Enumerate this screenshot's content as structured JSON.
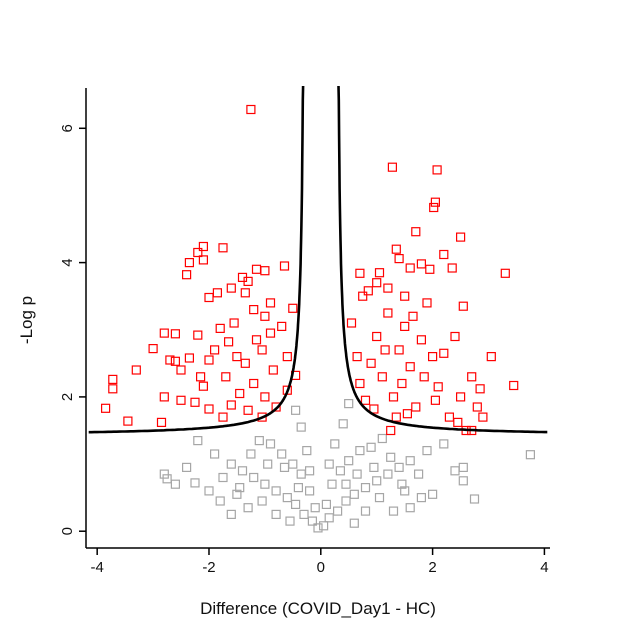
{
  "chart_data": {
    "type": "scatter",
    "title": "",
    "xlabel": "Difference (COVID_Day1 - HC)",
    "ylabel": "-Log p",
    "xlim": [
      -4.2,
      4.1
    ],
    "ylim": [
      -0.25,
      6.6
    ],
    "xticks": [
      -4,
      -2,
      0,
      2,
      4
    ],
    "yticks": [
      0,
      2,
      4,
      6
    ],
    "grid": false,
    "legend": "none",
    "marker": "open-square",
    "series": [
      {
        "color": "#ff0000",
        "points": [
          [
            -1.25,
            6.28
          ],
          [
            1.28,
            5.42
          ],
          [
            2.08,
            5.38
          ],
          [
            2.05,
            4.9
          ],
          [
            2.02,
            4.82
          ],
          [
            1.7,
            4.46
          ],
          [
            2.5,
            4.38
          ],
          [
            -2.1,
            4.24
          ],
          [
            -1.75,
            4.22
          ],
          [
            -2.2,
            4.15
          ],
          [
            1.35,
            4.2
          ],
          [
            1.4,
            4.06
          ],
          [
            2.2,
            4.12
          ],
          [
            -2.35,
            4.0
          ],
          [
            -2.1,
            4.04
          ],
          [
            1.8,
            3.98
          ],
          [
            1.6,
            3.92
          ],
          [
            1.95,
            3.9
          ],
          [
            2.35,
            3.92
          ],
          [
            -2.4,
            3.82
          ],
          [
            -1.15,
            3.9
          ],
          [
            -1.0,
            3.88
          ],
          [
            -0.65,
            3.95
          ],
          [
            0.7,
            3.84
          ],
          [
            3.3,
            3.84
          ],
          [
            -1.4,
            3.78
          ],
          [
            -1.3,
            3.72
          ],
          [
            -1.6,
            3.62
          ],
          [
            -1.85,
            3.55
          ],
          [
            -2.0,
            3.48
          ],
          [
            1.0,
            3.7
          ],
          [
            1.2,
            3.62
          ],
          [
            0.85,
            3.58
          ],
          [
            1.5,
            3.5
          ],
          [
            -0.5,
            3.32
          ],
          [
            2.55,
            3.35
          ],
          [
            -2.8,
            2.95
          ],
          [
            -2.6,
            2.94
          ],
          [
            -2.2,
            2.92
          ],
          [
            -2.6,
            2.53
          ],
          [
            -2.7,
            2.55
          ],
          [
            -3.0,
            2.72
          ],
          [
            -2.35,
            2.58
          ],
          [
            -2.5,
            2.4
          ],
          [
            -3.3,
            2.4
          ],
          [
            -3.72,
            2.26
          ],
          [
            -3.72,
            2.12
          ],
          [
            -3.85,
            1.83
          ],
          [
            -3.45,
            1.64
          ],
          [
            -2.8,
            2.0
          ],
          [
            -2.5,
            1.95
          ],
          [
            -2.85,
            1.62
          ],
          [
            -2.25,
            1.92
          ],
          [
            -2.1,
            2.16
          ],
          [
            -2.0,
            1.82
          ],
          [
            -1.6,
            1.88
          ],
          [
            -1.2,
            2.2
          ],
          [
            -1.35,
            2.5
          ],
          [
            -1.05,
            2.7
          ],
          [
            -0.85,
            2.4
          ],
          [
            -0.6,
            2.1
          ],
          [
            -0.45,
            2.32
          ],
          [
            -0.7,
            3.05
          ],
          [
            -1.55,
            3.1
          ],
          [
            -1.8,
            3.02
          ],
          [
            -1.2,
            3.3
          ],
          [
            -0.9,
            3.4
          ],
          [
            -1.5,
            2.6
          ],
          [
            -1.7,
            2.3
          ],
          [
            -1.9,
            2.7
          ],
          [
            -1.0,
            2.0
          ],
          [
            -0.8,
            1.85
          ],
          [
            -1.3,
            1.8
          ],
          [
            -1.45,
            2.05
          ],
          [
            -1.15,
            2.85
          ],
          [
            -1.65,
            2.82
          ],
          [
            -2.0,
            2.55
          ],
          [
            -2.15,
            2.3
          ],
          [
            -1.75,
            1.7
          ],
          [
            -1.05,
            1.7
          ],
          [
            -0.9,
            2.95
          ],
          [
            -0.6,
            2.6
          ],
          [
            -1.35,
            3.55
          ],
          [
            -1.0,
            3.2
          ],
          [
            0.55,
            3.1
          ],
          [
            0.65,
            2.6
          ],
          [
            0.7,
            2.2
          ],
          [
            0.8,
            1.95
          ],
          [
            0.9,
            2.5
          ],
          [
            1.0,
            2.9
          ],
          [
            1.1,
            2.3
          ],
          [
            1.2,
            3.25
          ],
          [
            1.3,
            2.0
          ],
          [
            1.4,
            2.7
          ],
          [
            1.5,
            3.05
          ],
          [
            1.6,
            2.45
          ],
          [
            1.7,
            1.85
          ],
          [
            1.8,
            2.85
          ],
          [
            1.9,
            3.4
          ],
          [
            2.0,
            2.6
          ],
          [
            2.1,
            2.15
          ],
          [
            2.2,
            2.65
          ],
          [
            2.3,
            1.7
          ],
          [
            2.4,
            2.9
          ],
          [
            2.5,
            2.0
          ],
          [
            2.7,
            2.3
          ],
          [
            1.35,
            1.7
          ],
          [
            1.55,
            1.75
          ],
          [
            0.95,
            1.82
          ],
          [
            1.15,
            2.7
          ],
          [
            1.45,
            2.2
          ],
          [
            1.65,
            3.2
          ],
          [
            1.85,
            2.3
          ],
          [
            2.05,
            1.95
          ],
          [
            0.75,
            3.5
          ],
          [
            2.6,
            1.5
          ],
          [
            2.8,
            1.85
          ],
          [
            2.85,
            2.12
          ],
          [
            3.05,
            2.6
          ],
          [
            3.45,
            2.17
          ],
          [
            2.9,
            1.7
          ],
          [
            2.45,
            1.62
          ],
          [
            2.7,
            1.5
          ],
          [
            1.25,
            1.5
          ],
          [
            1.05,
            3.85
          ]
        ]
      },
      {
        "color": "#a6a6a6",
        "points": [
          [
            -0.05,
            0.05
          ],
          [
            0.05,
            0.08
          ],
          [
            -0.15,
            0.15
          ],
          [
            0.15,
            0.2
          ],
          [
            -0.3,
            0.25
          ],
          [
            0.3,
            0.3
          ],
          [
            -0.45,
            0.4
          ],
          [
            0.45,
            0.45
          ],
          [
            -0.6,
            0.5
          ],
          [
            0.6,
            0.55
          ],
          [
            -0.8,
            0.6
          ],
          [
            0.8,
            0.65
          ],
          [
            -1.0,
            0.7
          ],
          [
            1.0,
            0.75
          ],
          [
            -1.2,
            0.8
          ],
          [
            1.2,
            0.85
          ],
          [
            -1.4,
            0.9
          ],
          [
            1.4,
            0.95
          ],
          [
            -1.6,
            1.0
          ],
          [
            1.6,
            1.05
          ],
          [
            -1.8,
            0.45
          ],
          [
            1.8,
            0.5
          ],
          [
            -2.0,
            0.6
          ],
          [
            2.0,
            0.55
          ],
          [
            -0.2,
            0.6
          ],
          [
            0.2,
            0.7
          ],
          [
            -0.35,
            0.85
          ],
          [
            0.35,
            0.9
          ],
          [
            -0.5,
            1.0
          ],
          [
            0.5,
            1.05
          ],
          [
            -0.7,
            1.15
          ],
          [
            0.7,
            1.2
          ],
          [
            -0.9,
            1.3
          ],
          [
            0.9,
            1.25
          ],
          [
            -1.1,
            1.35
          ],
          [
            1.1,
            1.38
          ],
          [
            -0.25,
            1.2
          ],
          [
            0.25,
            1.3
          ],
          [
            -0.35,
            1.55
          ],
          [
            0.4,
            1.6
          ],
          [
            -0.45,
            1.8
          ],
          [
            0.5,
            1.9
          ],
          [
            -0.2,
            0.9
          ],
          [
            0.15,
            1.0
          ],
          [
            -0.8,
            0.25
          ],
          [
            0.8,
            0.3
          ],
          [
            -1.3,
            0.35
          ],
          [
            1.3,
            0.3
          ],
          [
            -1.6,
            0.25
          ],
          [
            1.6,
            0.35
          ],
          [
            -0.55,
            0.15
          ],
          [
            0.6,
            0.12
          ],
          [
            -0.95,
            1.0
          ],
          [
            0.95,
            0.95
          ],
          [
            -1.25,
            1.15
          ],
          [
            1.25,
            1.1
          ],
          [
            -1.5,
            0.55
          ],
          [
            1.5,
            0.6
          ],
          [
            -1.75,
            0.8
          ],
          [
            1.75,
            0.85
          ],
          [
            -2.2,
            1.35
          ],
          [
            2.2,
            1.3
          ],
          [
            -2.4,
            0.95
          ],
          [
            2.4,
            0.9
          ],
          [
            -2.8,
            0.85
          ],
          [
            2.55,
            0.75
          ],
          [
            -2.6,
            0.7
          ],
          [
            -2.75,
            0.78
          ],
          [
            2.55,
            0.95
          ],
          [
            2.75,
            0.48
          ],
          [
            3.75,
            1.14
          ],
          [
            -2.25,
            0.72
          ],
          [
            -0.1,
            0.35
          ],
          [
            0.1,
            0.4
          ],
          [
            -0.4,
            0.65
          ],
          [
            0.45,
            0.7
          ],
          [
            -0.65,
            0.95
          ],
          [
            0.65,
            0.85
          ],
          [
            -1.05,
            0.45
          ],
          [
            1.05,
            0.5
          ],
          [
            -1.45,
            0.65
          ],
          [
            1.45,
            0.7
          ],
          [
            -1.9,
            1.15
          ],
          [
            1.9,
            1.2
          ]
        ]
      }
    ],
    "threshold_curve": {
      "color": "#000000",
      "y_floor": 1.42,
      "center_gap": 0.28,
      "steepness": 0.21
    }
  }
}
